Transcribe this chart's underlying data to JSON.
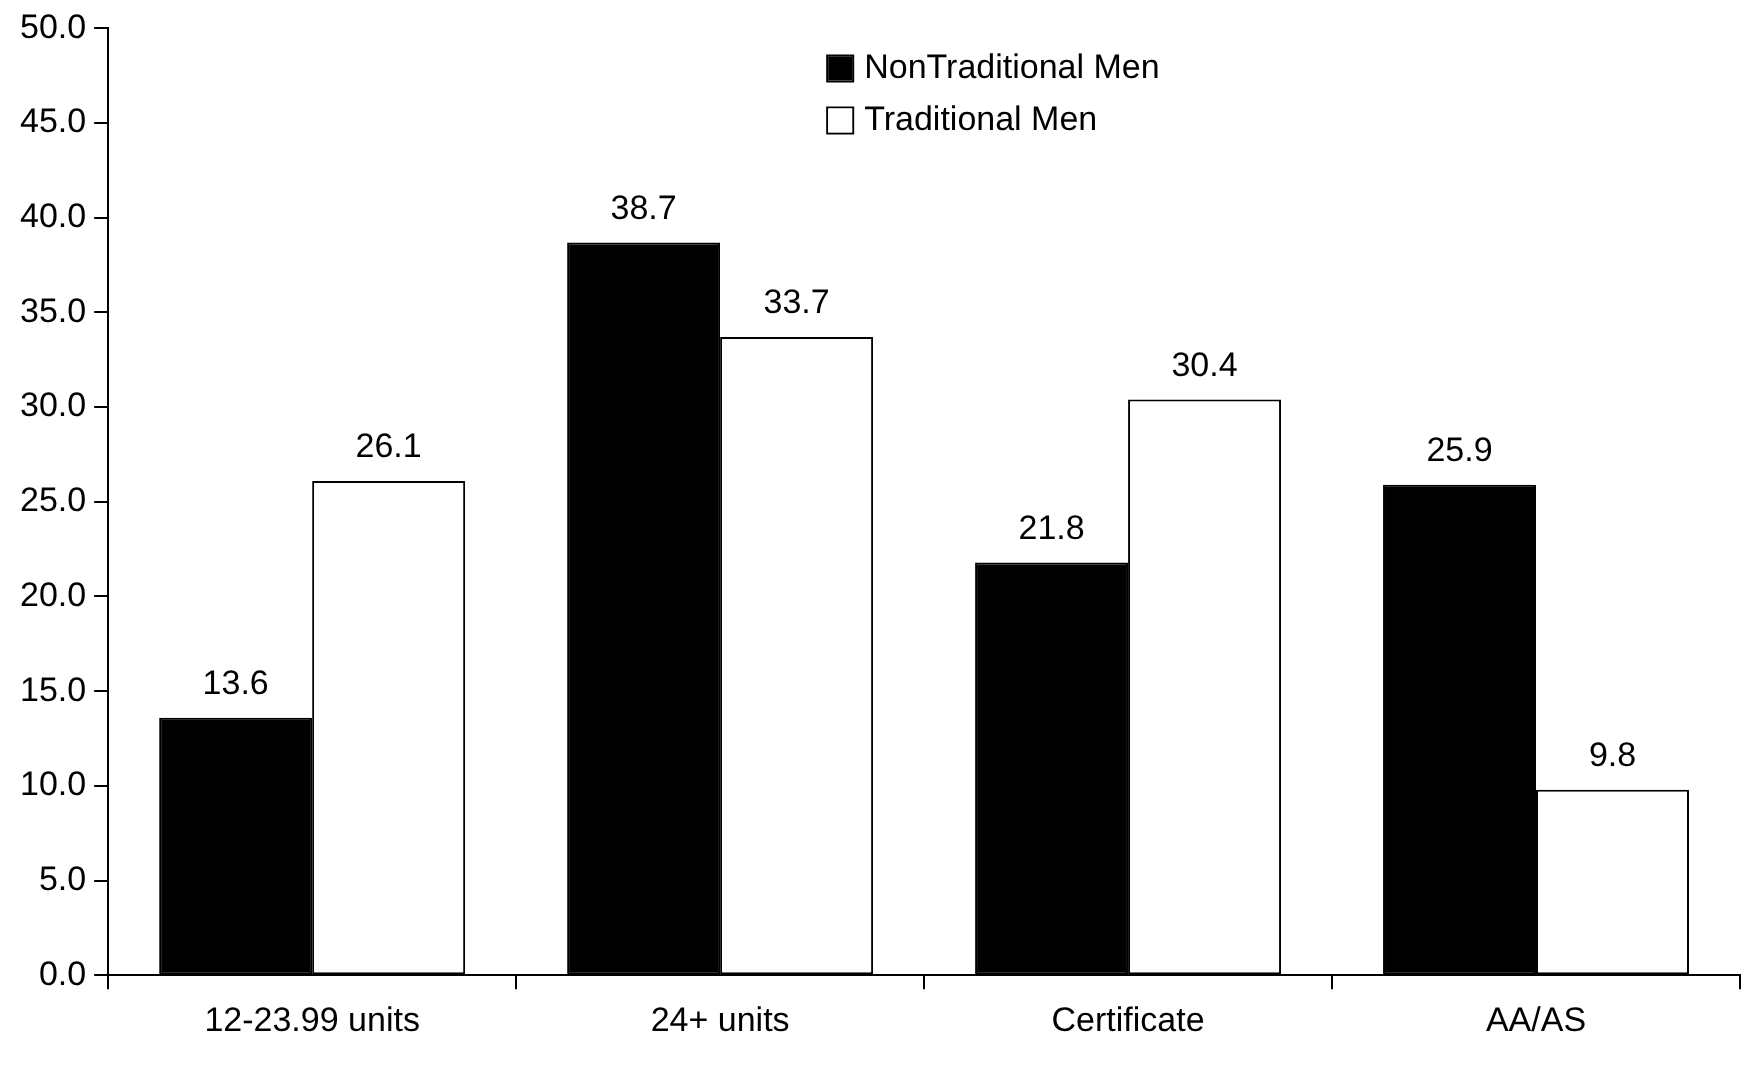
{
  "chart_data": {
    "type": "bar",
    "categories": [
      "12-23.99 units",
      "24+ units",
      "Certificate",
      "AA/AS"
    ],
    "series": [
      {
        "name": "NonTraditional Men",
        "color": "#000000",
        "values": [
          13.6,
          38.7,
          21.8,
          25.9
        ]
      },
      {
        "name": "Traditional Men",
        "color": "#ffffff",
        "values": [
          26.1,
          33.7,
          30.4,
          9.8
        ]
      }
    ],
    "ylim": [
      0,
      50
    ],
    "yticks": [
      {
        "value": 0,
        "label": "0.0"
      },
      {
        "value": 5,
        "label": "5.0"
      },
      {
        "value": 10,
        "label": "10.0"
      },
      {
        "value": 15,
        "label": "15.0"
      },
      {
        "value": 20,
        "label": "20.0"
      },
      {
        "value": 25,
        "label": "25.0"
      },
      {
        "value": 30,
        "label": "30.0"
      },
      {
        "value": 35,
        "label": "35.0"
      },
      {
        "value": 40,
        "label": "40.0"
      },
      {
        "value": 45,
        "label": "45.0"
      },
      {
        "value": 50,
        "label": "50.0"
      }
    ],
    "grid": false,
    "legend": "top",
    "data_labels": true
  }
}
